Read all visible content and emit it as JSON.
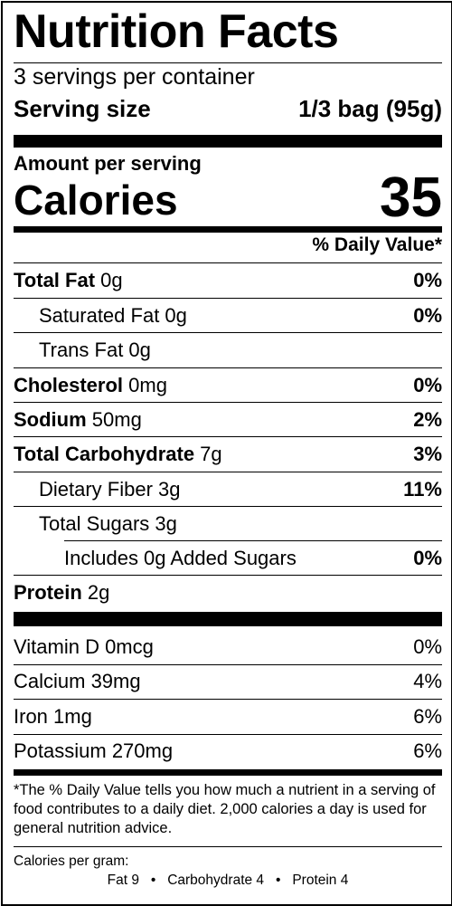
{
  "title": "Nutrition Facts",
  "servings": "3  servings per container",
  "serving_size": {
    "label": "Serving size",
    "value": "1/3 bag (95g)"
  },
  "amount_per_serving": "Amount per serving",
  "calories": {
    "label": "Calories",
    "value": "35"
  },
  "dv_header": "% Daily Value*",
  "nutrients": [
    {
      "name": "Total Fat",
      "amount": " 0g",
      "dv": "0%"
    },
    {
      "name": "Saturated Fat 0g",
      "amount": "",
      "dv": "0%"
    },
    {
      "name": "Trans Fat 0g",
      "amount": "",
      "dv": ""
    },
    {
      "name": "Cholesterol",
      "amount": " 0mg",
      "dv": "0%"
    },
    {
      "name": "Sodium",
      "amount": " 50mg",
      "dv": "2%"
    },
    {
      "name": "Total Carbohydrate",
      "amount": " 7g",
      "dv": "3%"
    },
    {
      "name": "Dietary Fiber 3g",
      "amount": "",
      "dv": "11%"
    },
    {
      "name": "Total Sugars 3g",
      "amount": "",
      "dv": ""
    },
    {
      "name": "Includes 0g Added Sugars",
      "amount": "",
      "dv": "0%"
    },
    {
      "name": "Protein",
      "amount": " 2g",
      "dv": ""
    }
  ],
  "vitamins": [
    {
      "name": "Vitamin D 0mcg",
      "dv": "0%"
    },
    {
      "name": "Calcium 39mg",
      "dv": "4%"
    },
    {
      "name": "Iron 1mg",
      "dv": "6%"
    },
    {
      "name": "Potassium 270mg",
      "dv": "6%"
    }
  ],
  "footnote": "*The % Daily Value tells you how much a nutrient in a serving of food contributes to a daily diet. 2,000 calories a day is used for general nutrition advice.",
  "calories_per_gram": {
    "label": "Calories per gram:",
    "detail": "Fat 9   •   Carbohydrate 4   •   Protein 4"
  }
}
